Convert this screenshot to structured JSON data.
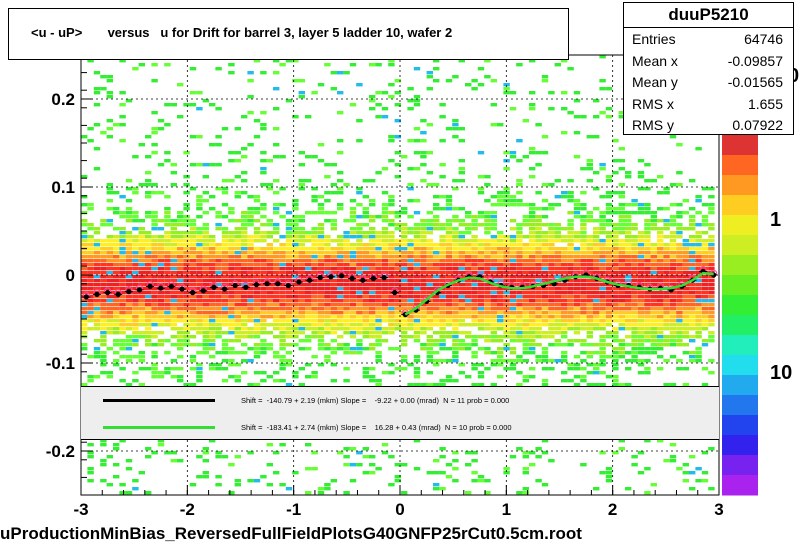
{
  "title": "<u - uP>       versus   u for Drift for barrel 3, layer 5 ladder 10, wafer 2",
  "footer": "uProductionMinBias_ReversedFullFieldPlotsG40GNFP25rCut0.5cm.root",
  "stats": {
    "name": "duuP5210",
    "rows": [
      {
        "label": "Entries",
        "value": "64746"
      },
      {
        "label": "Mean x",
        "value": "-0.09857"
      },
      {
        "label": "Mean y",
        "value": "-0.01565"
      },
      {
        "label": "RMS x",
        "value": "1.655"
      },
      {
        "label": "RMS y",
        "value": "0.07922"
      }
    ]
  },
  "legend": [
    {
      "color": "#000000",
      "text": "Shift =  -140.79 + 2.19 (mkm) Slope =    -9.22 + 0.00 (mrad)  N = 11 prob = 0.000"
    },
    {
      "color": "#33dd33",
      "text": "Shift =  -183.41 + 2.74 (mkm) Slope =    16.28 + 0.43 (mrad)  N = 10 prob = 0.000"
    }
  ],
  "palette_labels": [
    "1",
    "10"
  ],
  "palette_top_label": "0",
  "chart_data": {
    "type": "heatmap",
    "xlim": [
      -3,
      3
    ],
    "ylim": [
      -0.25,
      0.25
    ],
    "x_ticks": [
      "-3",
      "-2",
      "-1",
      "0",
      "1",
      "2",
      "3"
    ],
    "y_ticks": [
      "-0.2",
      "-0.1",
      "0",
      "0.1",
      "0.2"
    ],
    "y_tick_values": [
      -0.2,
      -0.1,
      0,
      0.1,
      0.2
    ],
    "grid": true,
    "profile_black": {
      "x": [
        -2.95,
        -2.85,
        -2.75,
        -2.65,
        -2.55,
        -2.45,
        -2.35,
        -2.25,
        -2.15,
        -2.05,
        -1.95,
        -1.85,
        -1.75,
        -1.65,
        -1.55,
        -1.45,
        -1.35,
        -1.25,
        -1.15,
        -1.05,
        -0.95,
        -0.85,
        -0.75,
        -0.65,
        -0.55,
        -0.45,
        -0.35,
        -0.25,
        -0.15,
        -0.05,
        0.05,
        0.15,
        0.25,
        0.35,
        0.45,
        0.55,
        0.65,
        0.75,
        0.85,
        0.95,
        1.05,
        1.15,
        1.25,
        1.35,
        1.45,
        1.55,
        1.65,
        1.75,
        1.85,
        1.95,
        2.05,
        2.15,
        2.25,
        2.35,
        2.45,
        2.55,
        2.65,
        2.75,
        2.85,
        2.95
      ],
      "y": [
        -0.025,
        -0.022,
        -0.02,
        -0.022,
        -0.019,
        -0.017,
        -0.013,
        -0.015,
        -0.013,
        -0.016,
        -0.02,
        -0.018,
        -0.014,
        -0.016,
        -0.012,
        -0.014,
        -0.011,
        -0.01,
        -0.01,
        -0.012,
        -0.008,
        -0.006,
        -0.003,
        -0.002,
        -0.001,
        -0.004,
        -0.006,
        -0.004,
        -0.003,
        -0.02,
        -0.045,
        -0.04,
        -0.03,
        -0.02,
        -0.012,
        -0.006,
        -0.002,
        -0.002,
        -0.008,
        -0.012,
        -0.014,
        -0.014,
        -0.013,
        -0.012,
        -0.01,
        -0.006,
        -0.002,
        0.0,
        -0.004,
        -0.008,
        -0.012,
        -0.012,
        -0.014,
        -0.016,
        -0.015,
        -0.017,
        -0.013,
        -0.006,
        0.004,
        0.0
      ]
    },
    "fit_green": {
      "x": [
        0.05,
        0.15,
        0.25,
        0.35,
        0.45,
        0.55,
        0.65,
        0.75,
        0.85,
        0.95,
        1.05,
        1.15,
        1.25,
        1.35,
        1.45,
        1.55,
        1.65,
        1.75,
        1.85,
        1.95,
        2.05,
        2.15,
        2.25,
        2.35,
        2.45,
        2.55,
        2.65,
        2.75,
        2.85,
        2.95
      ],
      "y": [
        -0.045,
        -0.038,
        -0.028,
        -0.018,
        -0.011,
        -0.006,
        -0.003,
        -0.004,
        -0.009,
        -0.013,
        -0.015,
        -0.015,
        -0.013,
        -0.01,
        -0.007,
        -0.004,
        -0.002,
        -0.002,
        -0.004,
        -0.008,
        -0.011,
        -0.013,
        -0.015,
        -0.016,
        -0.016,
        -0.015,
        -0.012,
        -0.006,
        0.002,
        0.001
      ]
    }
  }
}
